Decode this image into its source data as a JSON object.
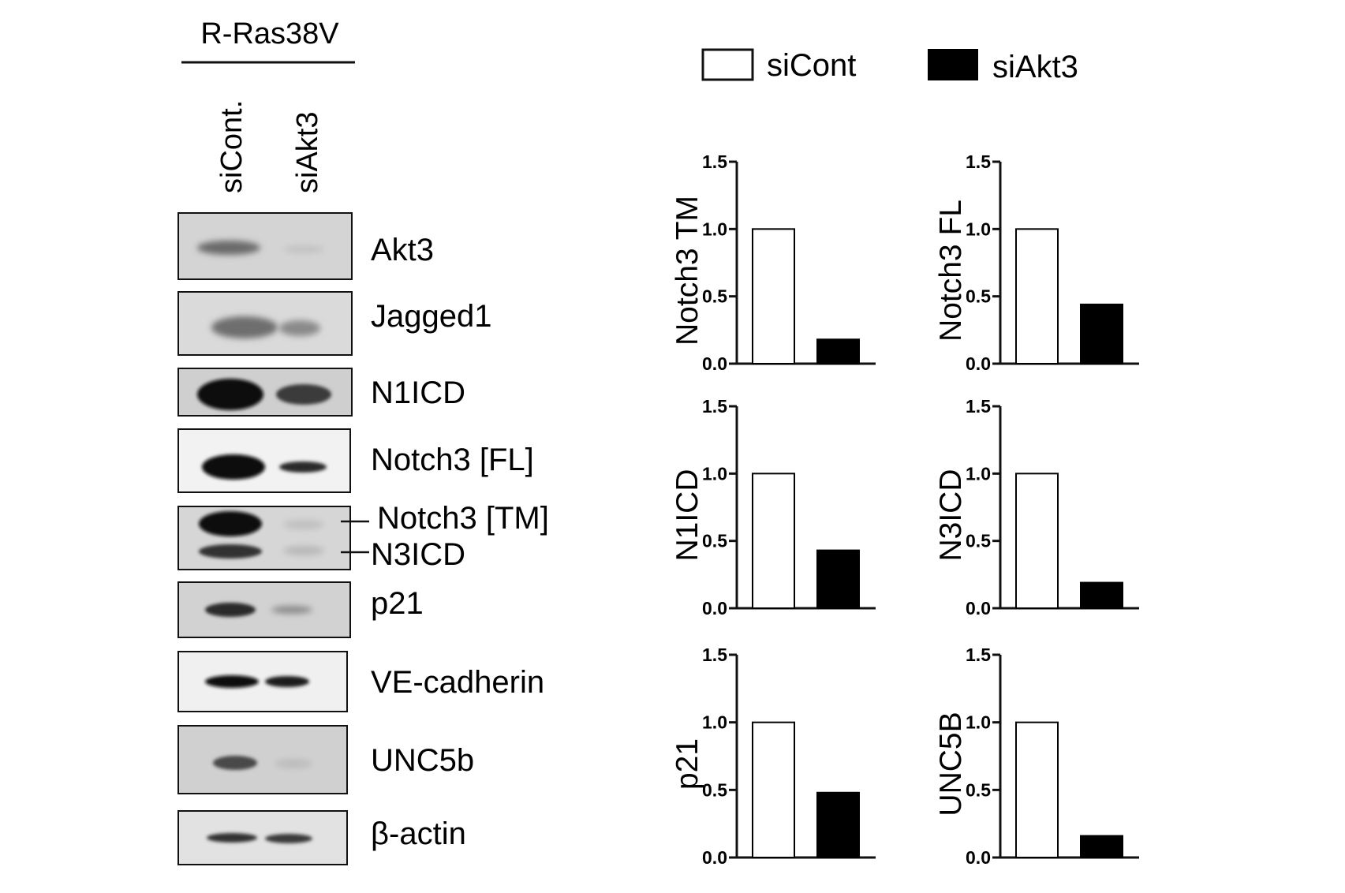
{
  "blot": {
    "header": "R-Ras38V",
    "lanes": [
      "siCont.",
      "siAkt3"
    ],
    "bands": [
      {
        "label": "Akt3"
      },
      {
        "label": "Jagged1"
      },
      {
        "label": "N1ICD"
      },
      {
        "label": "Notch3 [FL]"
      },
      {
        "label": "Notch3 [TM]"
      },
      {
        "label": "N3ICD"
      },
      {
        "label": "p21"
      },
      {
        "label": "VE-cadherin"
      },
      {
        "label": "UNC5b"
      },
      {
        "label": "β-actin"
      }
    ]
  },
  "legend": [
    {
      "name": "siCont",
      "fill": "#ffffff"
    },
    {
      "name": "siAkt3",
      "fill": "#000000"
    }
  ],
  "chart_data": [
    {
      "type": "bar",
      "ylabel": "Notch3 TM",
      "categories": [
        "siCont",
        "siAkt3"
      ],
      "values": [
        1.0,
        0.18
      ],
      "ylim": [
        0,
        1.5
      ],
      "yticks": [
        "0.0",
        "0.5",
        "1.0",
        "1.5"
      ]
    },
    {
      "type": "bar",
      "ylabel": "Notch3 FL",
      "categories": [
        "siCont",
        "siAkt3"
      ],
      "values": [
        1.0,
        0.44
      ],
      "ylim": [
        0,
        1.5
      ],
      "yticks": [
        "0.0",
        "0.5",
        "1.0",
        "1.5"
      ]
    },
    {
      "type": "bar",
      "ylabel": "N1ICD",
      "categories": [
        "siCont",
        "siAkt3"
      ],
      "values": [
        1.0,
        0.43
      ],
      "ylim": [
        0,
        1.5
      ],
      "yticks": [
        "0.0",
        "0.5",
        "1.0",
        "1.5"
      ]
    },
    {
      "type": "bar",
      "ylabel": "N3ICD",
      "categories": [
        "siCont",
        "siAkt3"
      ],
      "values": [
        1.0,
        0.19
      ],
      "ylim": [
        0,
        1.5
      ],
      "yticks": [
        "0.0",
        "0.5",
        "1.0",
        "1.5"
      ]
    },
    {
      "type": "bar",
      "ylabel": "p21",
      "categories": [
        "siCont",
        "siAkt3"
      ],
      "values": [
        1.0,
        0.48
      ],
      "ylim": [
        0,
        1.5
      ],
      "yticks": [
        "0.0",
        "0.5",
        "1.0",
        "1.5"
      ]
    },
    {
      "type": "bar",
      "ylabel": "UNC5B",
      "categories": [
        "siCont",
        "siAkt3"
      ],
      "values": [
        1.0,
        0.16
      ],
      "ylim": [
        0,
        1.5
      ],
      "yticks": [
        "0.0",
        "0.5",
        "1.0",
        "1.5"
      ]
    }
  ],
  "colors": {
    "siCont": "#ffffff",
    "siAkt3": "#000000",
    "axis": "#111111"
  }
}
